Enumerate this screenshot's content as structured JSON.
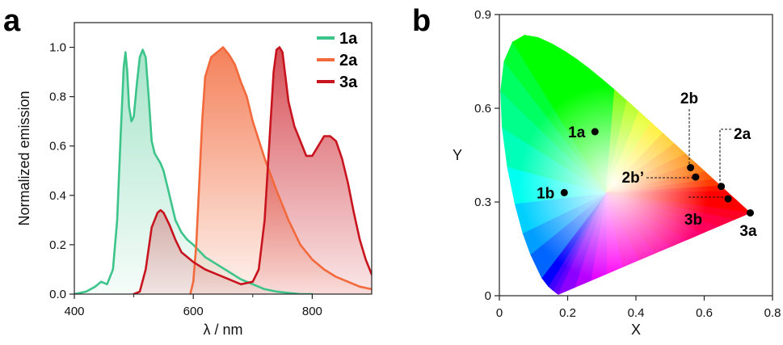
{
  "panels": {
    "a": "a",
    "b": "b"
  },
  "chart_data": [
    {
      "type": "line",
      "panel": "a",
      "xlabel": "λ / nm",
      "ylabel": "Normalized emission",
      "xlim": [
        400,
        900
      ],
      "ylim": [
        0,
        1.1
      ],
      "xticks": [
        400,
        600,
        800
      ],
      "xtick_labels": [
        "400",
        "600",
        "800"
      ],
      "yticks": [
        0,
        0.2,
        0.4,
        0.6,
        0.8,
        1.0
      ],
      "ytick_labels": [
        "0.0",
        "0.2",
        "0.4",
        "0.6",
        "0.8",
        "1.0"
      ],
      "legend_position": "top-right",
      "series": [
        {
          "name": "1a",
          "color": "#3cc48a",
          "x": [
            400,
            420,
            435,
            445,
            455,
            465,
            472,
            478,
            483,
            486,
            489,
            492,
            496,
            500,
            505,
            510,
            515,
            520,
            525,
            530,
            535,
            540,
            545,
            550,
            560,
            570,
            580,
            590,
            600,
            620,
            640,
            660,
            680,
            700,
            720,
            740,
            760,
            780,
            800
          ],
          "y": [
            0,
            0.01,
            0.03,
            0.05,
            0.04,
            0.1,
            0.3,
            0.65,
            0.92,
            0.98,
            0.9,
            0.76,
            0.7,
            0.72,
            0.85,
            0.96,
            0.99,
            0.96,
            0.8,
            0.62,
            0.57,
            0.55,
            0.53,
            0.5,
            0.4,
            0.3,
            0.25,
            0.22,
            0.2,
            0.15,
            0.12,
            0.09,
            0.06,
            0.04,
            0.02,
            0.01,
            0.005,
            0,
            0
          ]
        },
        {
          "name": "2a",
          "color": "#f26a3c",
          "x": [
            595,
            600,
            605,
            610,
            615,
            620,
            630,
            640,
            650,
            660,
            670,
            680,
            690,
            700,
            720,
            740,
            760,
            780,
            800,
            820,
            840,
            860,
            880,
            900
          ],
          "y": [
            0,
            0.05,
            0.2,
            0.45,
            0.7,
            0.88,
            0.96,
            0.98,
            1.0,
            0.97,
            0.93,
            0.86,
            0.8,
            0.7,
            0.55,
            0.42,
            0.3,
            0.2,
            0.14,
            0.1,
            0.07,
            0.05,
            0.03,
            0.02
          ]
        },
        {
          "name": "3a",
          "color": "#c8141e",
          "x": [
            500,
            510,
            520,
            530,
            540,
            545,
            550,
            560,
            570,
            580,
            600,
            620,
            640,
            660,
            680,
            700,
            710,
            720,
            730,
            735,
            740,
            745,
            750,
            755,
            760,
            770,
            780,
            790,
            800,
            810,
            820,
            830,
            840,
            850,
            860,
            870,
            880,
            890,
            900
          ],
          "y": [
            0,
            0.01,
            0.1,
            0.27,
            0.33,
            0.34,
            0.33,
            0.28,
            0.22,
            0.17,
            0.13,
            0.1,
            0.08,
            0.06,
            0.04,
            0.05,
            0.1,
            0.3,
            0.7,
            0.9,
            0.99,
            1.0,
            0.98,
            0.88,
            0.78,
            0.68,
            0.62,
            0.56,
            0.56,
            0.6,
            0.64,
            0.64,
            0.62,
            0.55,
            0.45,
            0.33,
            0.22,
            0.14,
            0.08
          ]
        }
      ]
    },
    {
      "type": "scatter",
      "panel": "b",
      "xlabel": "X",
      "ylabel": "Y",
      "xlim": [
        0,
        0.8
      ],
      "ylim": [
        0,
        0.9
      ],
      "xticks": [
        0,
        0.2,
        0.4,
        0.6,
        0.8
      ],
      "xtick_labels": [
        "0",
        "0.2",
        "0.4",
        "0.6",
        "0.8"
      ],
      "yticks": [
        0,
        0.3,
        0.6,
        0.9
      ],
      "ytick_labels": [
        "0",
        "0.3",
        "0.6",
        "0.9"
      ],
      "points": [
        {
          "label": "1a",
          "x": 0.28,
          "y": 0.525
        },
        {
          "label": "1b",
          "x": 0.19,
          "y": 0.33
        },
        {
          "label": "2b",
          "x": 0.56,
          "y": 0.41
        },
        {
          "label": "2b’",
          "x": 0.575,
          "y": 0.38
        },
        {
          "label": "2a",
          "x": 0.65,
          "y": 0.35
        },
        {
          "label": "3b",
          "x": 0.67,
          "y": 0.31
        },
        {
          "label": "3a",
          "x": 0.735,
          "y": 0.265
        }
      ]
    }
  ]
}
